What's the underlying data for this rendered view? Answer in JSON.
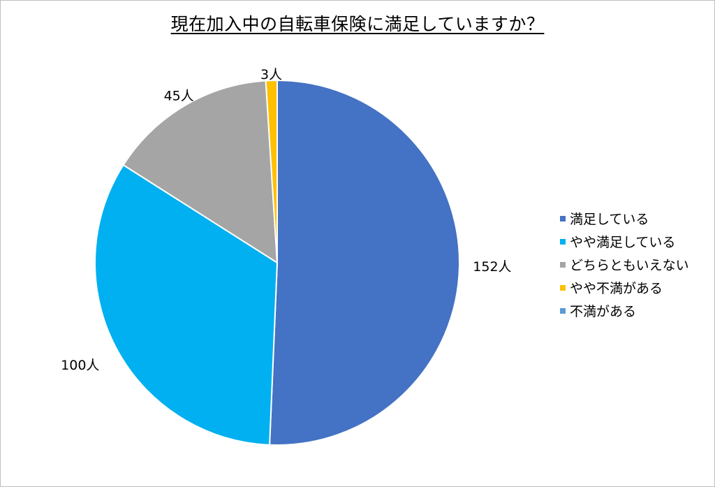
{
  "chart_data": {
    "type": "pie",
    "title": "現在加入中の自転車保険に満足していますか？",
    "unit": "人",
    "categories": [
      "満足している",
      "やや満足している",
      "どちらともいえない",
      "やや不満がある",
      "不満がある"
    ],
    "values": [
      152,
      100,
      45,
      3,
      0
    ],
    "data_labels": [
      "152人",
      "100人",
      "45人",
      "3人",
      ""
    ],
    "colors": [
      "#4472c4",
      "#00b0f0",
      "#a5a5a5",
      "#ffc000",
      "#5b9bd5"
    ],
    "legend_position": "right",
    "start_angle": "12 o'clock",
    "direction": "clockwise"
  }
}
